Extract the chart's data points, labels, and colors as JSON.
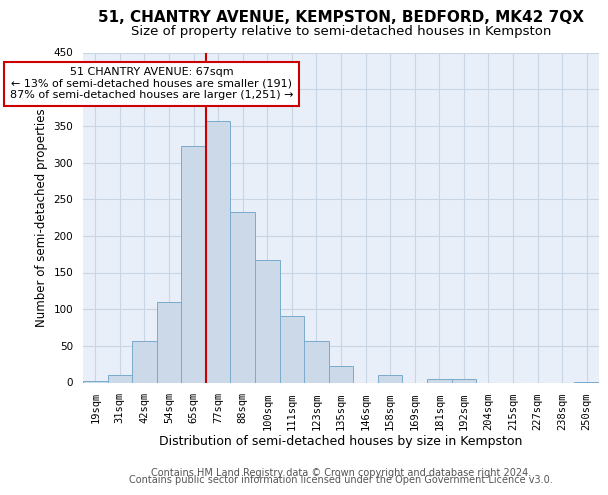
{
  "title": "51, CHANTRY AVENUE, KEMPSTON, BEDFORD, MK42 7QX",
  "subtitle": "Size of property relative to semi-detached houses in Kempston",
  "xlabel": "Distribution of semi-detached houses by size in Kempston",
  "ylabel": "Number of semi-detached properties",
  "annotation_line1": "51 CHANTRY AVENUE: 67sqm",
  "annotation_line2": "← 13% of semi-detached houses are smaller (191)",
  "annotation_line3": "87% of semi-detached houses are larger (1,251) →",
  "footer1": "Contains HM Land Registry data © Crown copyright and database right 2024.",
  "footer2": "Contains public sector information licensed under the Open Government Licence v3.0.",
  "bar_labels": [
    "19sqm",
    "31sqm",
    "42sqm",
    "54sqm",
    "65sqm",
    "77sqm",
    "88sqm",
    "100sqm",
    "111sqm",
    "123sqm",
    "135sqm",
    "146sqm",
    "158sqm",
    "169sqm",
    "181sqm",
    "192sqm",
    "204sqm",
    "215sqm",
    "227sqm",
    "238sqm",
    "250sqm"
  ],
  "bar_values": [
    2,
    10,
    56,
    110,
    322,
    356,
    232,
    167,
    91,
    56,
    22,
    0,
    10,
    0,
    5,
    5,
    0,
    0,
    0,
    0,
    1
  ],
  "bar_color": "#ccd9e8",
  "bar_edge_color": "#7aabcc",
  "vline_color": "#cc0000",
  "annotation_box_edge_color": "#cc0000",
  "ylim": [
    0,
    450
  ],
  "yticks": [
    0,
    50,
    100,
    150,
    200,
    250,
    300,
    350,
    400,
    450
  ],
  "grid_color": "#c8d5e5",
  "bg_color": "#e8eff8",
  "title_fontsize": 11,
  "subtitle_fontsize": 9.5,
  "axis_ylabel_fontsize": 8.5,
  "axis_xlabel_fontsize": 9,
  "tick_fontsize": 7.5,
  "footer_fontsize": 7
}
